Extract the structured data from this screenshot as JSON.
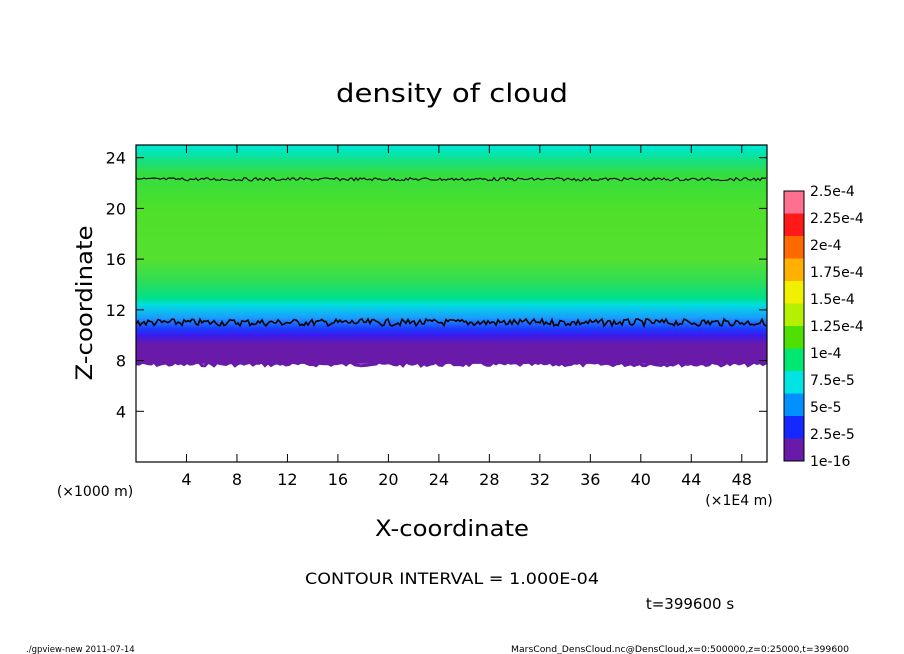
{
  "chart_data": {
    "type": "heatmap",
    "title": "density of cloud",
    "xlabel": "X-coordinate",
    "ylabel": "Z-coordinate",
    "x_unit_label": "(×1E4 m)",
    "y_unit_label": "(×1000 m)",
    "xlim": [
      0,
      50
    ],
    "ylim": [
      0,
      25
    ],
    "x_ticks": [
      4,
      8,
      12,
      16,
      20,
      24,
      28,
      32,
      36,
      40,
      44,
      48
    ],
    "y_ticks": [
      4,
      8,
      12,
      16,
      20,
      24
    ],
    "contour_interval_text": "CONTOUR INTERVAL = 1.000E-04",
    "contour_levels_shown": [
      0.0001
    ],
    "contour_lines_z": [
      11,
      22.3
    ],
    "cloud_layer_z": [
      7.9,
      25
    ],
    "colorbar": {
      "labels": [
        "2.5e-4",
        "2.25e-4",
        "2e-4",
        "1.75e-4",
        "1.5e-4",
        "1.25e-4",
        "1e-4",
        "7.5e-5",
        "5e-5",
        "2.5e-5",
        "1e-16"
      ],
      "colors": [
        "#ff6f8f",
        "#ff1a1a",
        "#ff6a00",
        "#ffb000",
        "#f0f000",
        "#b4f000",
        "#4ee000",
        "#00e872",
        "#00e4e4",
        "#0090ff",
        "#1428ff",
        "#6a1aa8"
      ]
    },
    "time_label": "t=399600 s"
  },
  "footer": {
    "left": "./gpview-new   2011-07-14",
    "right": "MarsCond_DensCloud.nc@DensCloud,x=0:500000,z=0:25000,t=399600"
  }
}
